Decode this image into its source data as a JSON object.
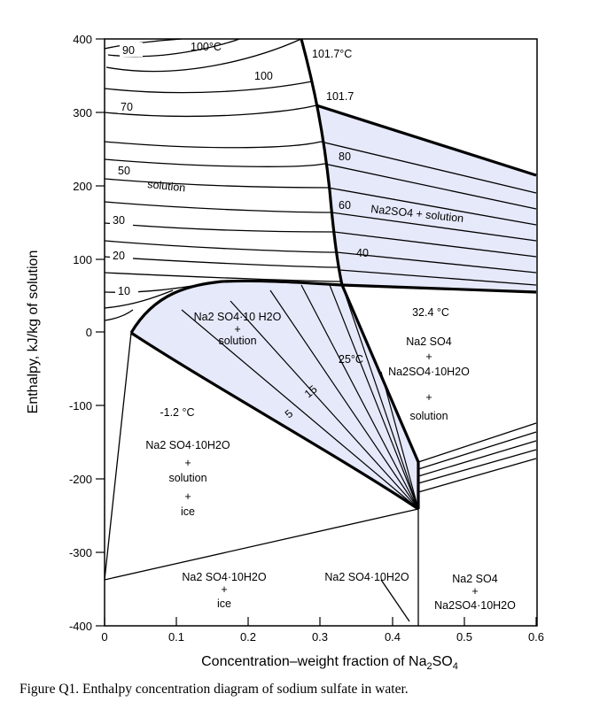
{
  "caption": "Figure Q1. Enthalpy concentration diagram of sodium sulfate in water.",
  "x_axis": {
    "label_main": "Concentration–weight fraction of Na",
    "label_sub": "2",
    "label_end": "SO",
    "label_sub2": "4",
    "ticks": [
      "0",
      "0.1",
      "0.2",
      "0.3",
      "0.4",
      "0.5",
      "0.6"
    ]
  },
  "y_axis": {
    "label": "Enthalpy, kJ/kg of solution",
    "ticks": [
      "400",
      "300",
      "200",
      "100",
      "0",
      "-100",
      "-200",
      "-300",
      "-400"
    ]
  },
  "isotherm_labels": {
    "t90": "90",
    "t100c": "100°C",
    "t100": "100",
    "t70": "70",
    "t50": "50",
    "t30": "30",
    "t20": "20",
    "t10": "10",
    "t1017c": "101.7°C",
    "t1017": "101.7",
    "t80": "80",
    "t60": "60",
    "t40": "40",
    "t25c": "25°C",
    "t15": "15",
    "t5": "5"
  },
  "regions": {
    "solution": "solution",
    "na2so4_solution": "Na2SO4 + solution",
    "decahydrate_solution": [
      "Na2 SO4·10 H2O",
      "+",
      "solution"
    ],
    "temp_324": "32.4 °C",
    "three_phase": [
      "Na2 SO4",
      "+",
      "Na2SO4·10H2O",
      "+",
      "solution"
    ],
    "temp_m12": "-1.2 °C",
    "eutectic": [
      "Na2 SO4·10H2O",
      "+",
      "solution",
      "+",
      "ice"
    ],
    "decahydrate_ice": [
      "Na2 SO4·10H2O",
      "+",
      "ice"
    ],
    "decahydrate": "Na2 SO4·10H2O",
    "na2so4_decahydrate": [
      "Na2 SO4",
      "+",
      "Na2SO4·10H2O"
    ]
  },
  "colors": {
    "shade": "#e6e9fa",
    "line": "#000000"
  }
}
